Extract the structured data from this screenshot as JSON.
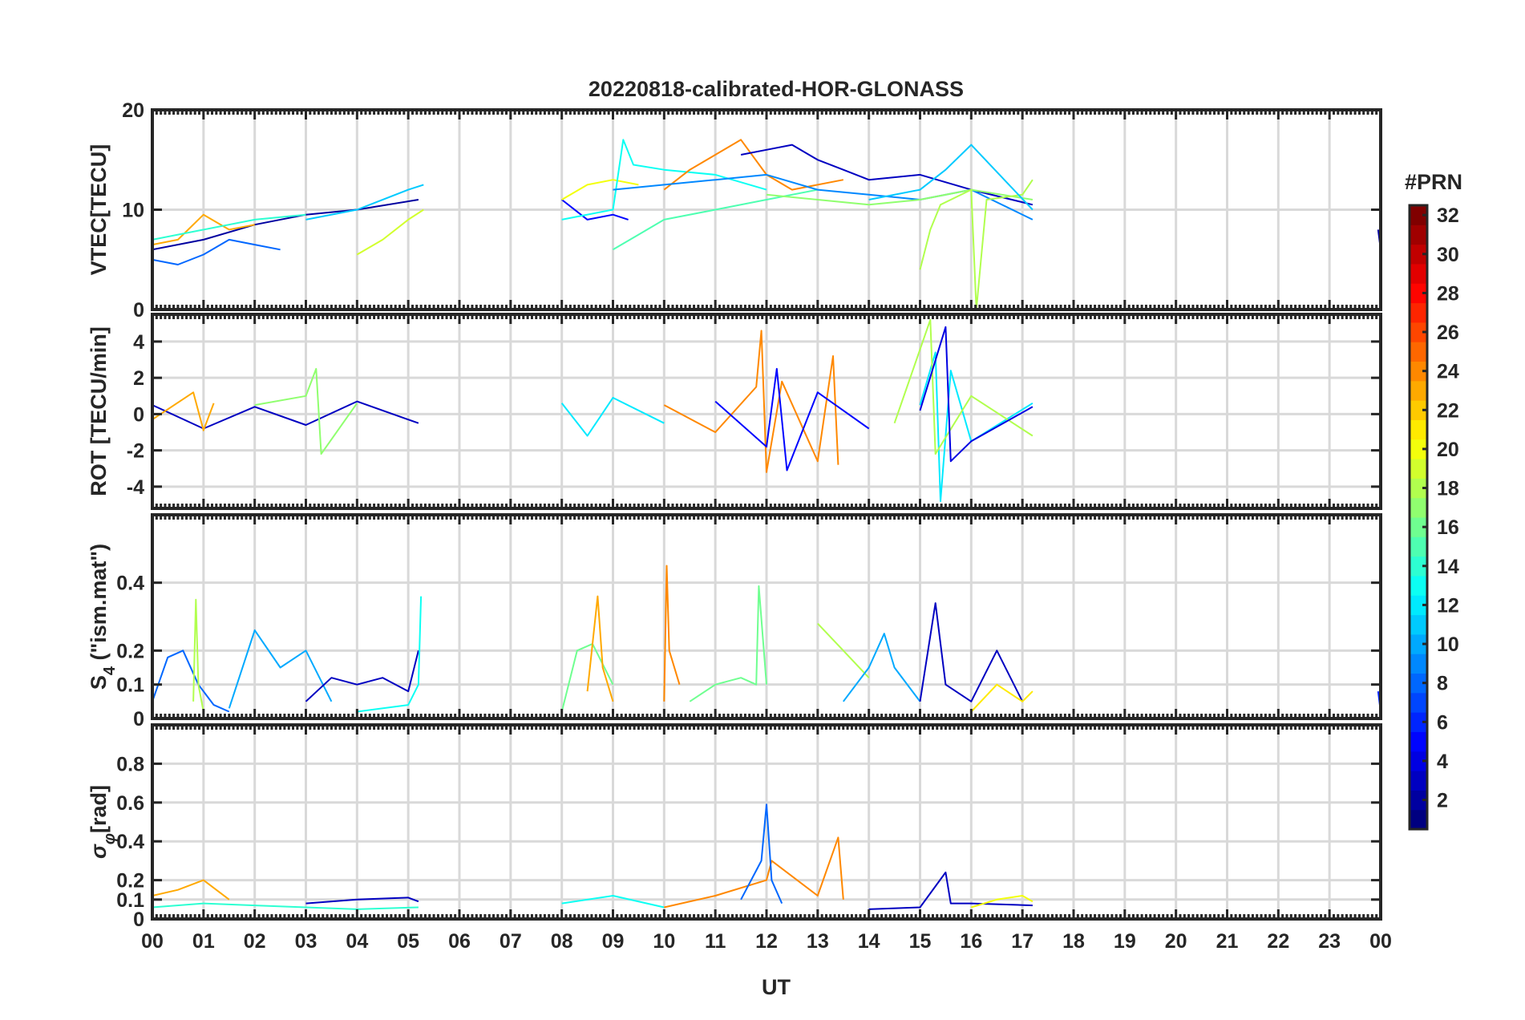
{
  "chart_data": {
    "type": "line",
    "title": "20220818-calibrated-HOR-GLONASS",
    "xlabel": "UT",
    "x_tick_labels": [
      "00",
      "01",
      "02",
      "03",
      "04",
      "05",
      "06",
      "07",
      "08",
      "09",
      "10",
      "11",
      "12",
      "13",
      "14",
      "15",
      "16",
      "17",
      "18",
      "19",
      "20",
      "21",
      "22",
      "23",
      "00"
    ],
    "xlim": [
      0,
      24
    ],
    "grid": true,
    "colormap": "jet",
    "colorbar": {
      "title": "#PRN",
      "range": [
        1,
        32
      ],
      "tick_labels": [
        "2",
        "4",
        "6",
        "8",
        "10",
        "12",
        "14",
        "16",
        "18",
        "20",
        "22",
        "24",
        "26",
        "28",
        "30",
        "32"
      ],
      "placement": "right"
    },
    "panels": [
      {
        "id": "vtec",
        "ylabel": "VTEC[TECU]",
        "ylim": [
          0,
          20
        ],
        "y_tick_labels": [
          "0",
          "10",
          "20"
        ],
        "y_ticks": [
          0,
          10,
          20
        ],
        "series": [
          {
            "prn": 2,
            "x": [
              0.0,
              1.0,
              2.0,
              3.0,
              4.0,
              5.2
            ],
            "y": [
              6,
              7,
              8.5,
              9.5,
              10,
              11
            ]
          },
          {
            "prn": 8,
            "x": [
              0.0,
              0.5,
              1.0,
              1.5,
              2.0,
              2.5
            ],
            "y": [
              5,
              4.5,
              5.5,
              7,
              6.5,
              6
            ]
          },
          {
            "prn": 11,
            "x": [
              3.0,
              4.0,
              5.0,
              5.3
            ],
            "y": [
              9,
              10,
              12,
              12.5
            ]
          },
          {
            "prn": 23,
            "x": [
              0.0,
              0.5,
              1.0,
              1.5,
              2.0
            ],
            "y": [
              6.5,
              7,
              9.5,
              8,
              8.5
            ]
          },
          {
            "prn": 19,
            "x": [
              4.0,
              4.5,
              5.0,
              5.3
            ],
            "y": [
              5.5,
              7,
              9,
              10
            ]
          },
          {
            "prn": 14,
            "x": [
              0.0,
              1.0,
              2.0,
              3.0
            ],
            "y": [
              7,
              8,
              9,
              9.5
            ]
          },
          {
            "prn": 5,
            "x": [
              8.0,
              8.5,
              9.0,
              9.3
            ],
            "y": [
              11,
              9,
              9.5,
              9
            ]
          },
          {
            "prn": 20,
            "x": [
              8.0,
              8.5,
              9.0,
              9.5
            ],
            "y": [
              11,
              12.5,
              13,
              12.5
            ]
          },
          {
            "prn": 15,
            "x": [
              9.0,
              9.5,
              10.0,
              11.0,
              12.0,
              13.0
            ],
            "y": [
              6,
              7.5,
              9,
              10,
              11,
              12
            ]
          },
          {
            "prn": 13,
            "x": [
              8.0,
              9.0,
              9.2,
              9.4,
              10.0,
              11.0,
              12.0
            ],
            "y": [
              9,
              10,
              17,
              14.5,
              14,
              13.5,
              12
            ]
          },
          {
            "prn": 24,
            "x": [
              10.0,
              10.5,
              11.0,
              11.5,
              12.0,
              12.5,
              13.5
            ],
            "y": [
              12,
              14,
              15.5,
              17,
              13.5,
              12,
              13
            ]
          },
          {
            "prn": 3,
            "x": [
              11.5,
              12.0,
              12.5,
              13.0,
              13.5,
              14.0,
              15.0,
              16.0,
              17.2
            ],
            "y": [
              15.5,
              16,
              16.5,
              15,
              14,
              13,
              13.5,
              12,
              10.5
            ]
          },
          {
            "prn": 9,
            "x": [
              9.0,
              10.0,
              11.0,
              12.0,
              13.0,
              14.0,
              15.0,
              16.0,
              17.2
            ],
            "y": [
              12,
              12.5,
              13,
              13.5,
              12,
              11.5,
              11,
              12,
              9
            ]
          },
          {
            "prn": 17,
            "x": [
              12.0,
              13.0,
              14.0,
              15.0,
              16.0,
              17.2
            ],
            "y": [
              11.5,
              11,
              10.5,
              11,
              12,
              11
            ]
          },
          {
            "prn": 18,
            "x": [
              15.0,
              15.2,
              15.4,
              16.0,
              16.1,
              16.3,
              17.0,
              17.2
            ],
            "y": [
              4,
              8,
              10.5,
              12,
              0,
              11,
              11.5,
              13
            ]
          },
          {
            "prn": 11,
            "x": [
              14.0,
              15.0,
              15.5,
              16.0,
              17.2
            ],
            "y": [
              11,
              12,
              14,
              16.5,
              10
            ]
          },
          {
            "prn": 2,
            "x": [
              23.95,
              24.0
            ],
            "y": [
              8,
              6
            ]
          }
        ]
      },
      {
        "id": "rot",
        "ylabel": "ROT [TECU/min]",
        "ylim": [
          -5.2,
          5.5
        ],
        "y_tick_labels": [
          "-4",
          "-2",
          "0",
          "2",
          "4"
        ],
        "y_ticks": [
          -4,
          -2,
          0,
          2,
          4
        ],
        "series": [
          {
            "prn": 3,
            "x": [
              0.0,
              1.0,
              2.0,
              3.0,
              4.0,
              5.2
            ],
            "y": [
              0.5,
              -0.8,
              0.4,
              -0.6,
              0.7,
              -0.5
            ]
          },
          {
            "prn": 23,
            "x": [
              0.0,
              0.8,
              1.0,
              1.2
            ],
            "y": [
              -0.3,
              1.2,
              -0.9,
              0.6
            ]
          },
          {
            "prn": 17,
            "x": [
              2.0,
              3.0,
              3.2,
              3.3,
              4.0
            ],
            "y": [
              0.5,
              1.0,
              2.5,
              -2.2,
              0.6
            ]
          },
          {
            "prn": 12,
            "x": [
              8.0,
              8.5,
              9.0,
              10.0
            ],
            "y": [
              0.6,
              -1.2,
              0.9,
              -0.5
            ]
          },
          {
            "prn": 24,
            "x": [
              10.0,
              11.0,
              11.8,
              11.9,
              12.0,
              12.3,
              13.0,
              13.3,
              13.4
            ],
            "y": [
              0.5,
              -1,
              1.5,
              4.6,
              -3.2,
              1.8,
              -2.6,
              3.2,
              -2.8
            ]
          },
          {
            "prn": 5,
            "x": [
              11.0,
              12.0,
              12.2,
              12.4,
              13.0,
              14.0
            ],
            "y": [
              0.7,
              -1.8,
              2.5,
              -3.1,
              1.2,
              -0.8
            ]
          },
          {
            "prn": 12,
            "x": [
              15.0,
              15.3,
              15.4,
              15.6,
              16.0,
              17.2
            ],
            "y": [
              0.5,
              3.4,
              -4.8,
              2.4,
              -1.5,
              0.6
            ]
          },
          {
            "prn": 18,
            "x": [
              14.5,
              15.2,
              15.3,
              16.0,
              17.2
            ],
            "y": [
              -0.5,
              5.2,
              -2.2,
              1.0,
              -1.2
            ]
          },
          {
            "prn": 4,
            "x": [
              15.0,
              15.5,
              15.6,
              16.0,
              17.2
            ],
            "y": [
              0.2,
              4.8,
              -2.6,
              -1.5,
              0.4
            ]
          }
        ]
      },
      {
        "id": "s4",
        "ylabel": "S4 (\"ism.mat\")",
        "ylabel_base": "S",
        "ylabel_sub": "4",
        "ylabel_rest": " (\"ism.mat\")",
        "ylim": [
          0,
          0.6
        ],
        "y_tick_labels": [
          "0",
          "0.1",
          "0.2",
          "0.4"
        ],
        "y_ticks": [
          0,
          0.1,
          0.2,
          0.4
        ],
        "series": [
          {
            "prn": 8,
            "x": [
              0.0,
              0.3,
              0.6,
              0.9,
              1.2,
              1.5
            ],
            "y": [
              0.05,
              0.18,
              0.2,
              0.1,
              0.04,
              0.02
            ]
          },
          {
            "prn": 18,
            "x": [
              0.8,
              0.85,
              0.9,
              1.0
            ],
            "y": [
              0.05,
              0.35,
              0.1,
              0.02
            ]
          },
          {
            "prn": 10,
            "x": [
              1.5,
              2.0,
              2.5,
              3.0,
              3.5
            ],
            "y": [
              0.03,
              0.26,
              0.15,
              0.2,
              0.05
            ]
          },
          {
            "prn": 3,
            "x": [
              3.0,
              3.5,
              4.0,
              4.5,
              5.0,
              5.2
            ],
            "y": [
              0.05,
              0.12,
              0.1,
              0.12,
              0.08,
              0.2
            ]
          },
          {
            "prn": 13,
            "x": [
              4.0,
              5.0,
              5.2,
              5.25
            ],
            "y": [
              0.02,
              0.04,
              0.1,
              0.36
            ]
          },
          {
            "prn": 16,
            "x": [
              8.0,
              8.3,
              8.6,
              9.0
            ],
            "y": [
              0.02,
              0.2,
              0.22,
              0.1
            ]
          },
          {
            "prn": 23,
            "x": [
              8.5,
              8.7,
              8.8,
              9.0
            ],
            "y": [
              0.08,
              0.36,
              0.15,
              0.05
            ]
          },
          {
            "prn": 24,
            "x": [
              10.0,
              10.05,
              10.1,
              10.3
            ],
            "y": [
              0.05,
              0.45,
              0.2,
              0.1
            ]
          },
          {
            "prn": 16,
            "x": [
              10.5,
              11.0,
              11.5,
              11.8,
              11.85,
              12.0
            ],
            "y": [
              0.05,
              0.1,
              0.12,
              0.1,
              0.39,
              0.1
            ]
          },
          {
            "prn": 18,
            "x": [
              13.0,
              13.5,
              14.0
            ],
            "y": [
              0.28,
              0.2,
              0.12
            ]
          },
          {
            "prn": 10,
            "x": [
              13.5,
              14.0,
              14.3,
              14.5,
              15.0
            ],
            "y": [
              0.05,
              0.15,
              0.25,
              0.15,
              0.05
            ]
          },
          {
            "prn": 3,
            "x": [
              15.0,
              15.3,
              15.5,
              16.0,
              16.5,
              17.0
            ],
            "y": [
              0.05,
              0.34,
              0.1,
              0.05,
              0.2,
              0.05
            ]
          },
          {
            "prn": 21,
            "x": [
              16.0,
              16.5,
              17.0,
              17.2
            ],
            "y": [
              0.02,
              0.1,
              0.05,
              0.08
            ]
          },
          {
            "prn": 6,
            "x": [
              23.95,
              24.0
            ],
            "y": [
              0.08,
              0.02
            ]
          }
        ]
      },
      {
        "id": "sigma_phi",
        "ylabel": "σφ[rad]",
        "ylabel_base": "σ",
        "ylabel_sub": "φ",
        "ylabel_rest": "[rad]",
        "ylim": [
          0,
          1.0
        ],
        "y_tick_labels": [
          "0",
          "0.1",
          "0.2",
          "0.4",
          "0.6",
          "0.8"
        ],
        "y_ticks": [
          0,
          0.1,
          0.2,
          0.4,
          0.6,
          0.8
        ],
        "series": [
          {
            "prn": 23,
            "x": [
              0.0,
              0.5,
              1.0,
              1.5
            ],
            "y": [
              0.12,
              0.15,
              0.2,
              0.1
            ]
          },
          {
            "prn": 14,
            "x": [
              0.0,
              1.0,
              2.0,
              3.0,
              4.0,
              5.2
            ],
            "y": [
              0.06,
              0.08,
              0.07,
              0.06,
              0.05,
              0.06
            ]
          },
          {
            "prn": 3,
            "x": [
              3.0,
              4.0,
              5.0,
              5.2
            ],
            "y": [
              0.08,
              0.1,
              0.11,
              0.09
            ]
          },
          {
            "prn": 13,
            "x": [
              8.0,
              9.0,
              10.0
            ],
            "y": [
              0.08,
              0.12,
              0.06
            ]
          },
          {
            "prn": 24,
            "x": [
              10.0,
              11.0,
              12.0,
              12.1,
              13.0,
              13.4,
              13.5
            ],
            "y": [
              0.06,
              0.12,
              0.2,
              0.3,
              0.12,
              0.42,
              0.1
            ]
          },
          {
            "prn": 8,
            "x": [
              11.5,
              11.9,
              12.0,
              12.1,
              12.3
            ],
            "y": [
              0.1,
              0.3,
              0.59,
              0.2,
              0.08
            ]
          },
          {
            "prn": 3,
            "x": [
              14.0,
              15.0,
              15.5,
              15.6,
              16.0,
              17.2
            ],
            "y": [
              0.05,
              0.06,
              0.24,
              0.08,
              0.08,
              0.07
            ]
          },
          {
            "prn": 20,
            "x": [
              16.0,
              16.5,
              17.0,
              17.2
            ],
            "y": [
              0.06,
              0.1,
              0.12,
              0.09
            ]
          }
        ]
      }
    ]
  }
}
